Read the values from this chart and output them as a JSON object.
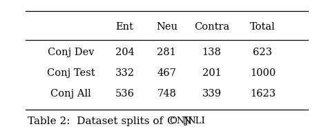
{
  "col_headers": [
    "",
    "Ent",
    "Neu",
    "Contra",
    "Total"
  ],
  "rows": [
    [
      "Conj Dev",
      "204",
      "281",
      "138",
      "623"
    ],
    [
      "Conj Test",
      "332",
      "467",
      "201",
      "1000"
    ],
    [
      "Conj All",
      "536",
      "748",
      "339",
      "1623"
    ]
  ],
  "caption": "Table 2:  Dataset splits of ConjNLI.",
  "bg_color": "#ffffff",
  "text_color": "#000000",
  "header_fontsize": 10.5,
  "cell_fontsize": 10.5,
  "caption_fontsize": 11
}
